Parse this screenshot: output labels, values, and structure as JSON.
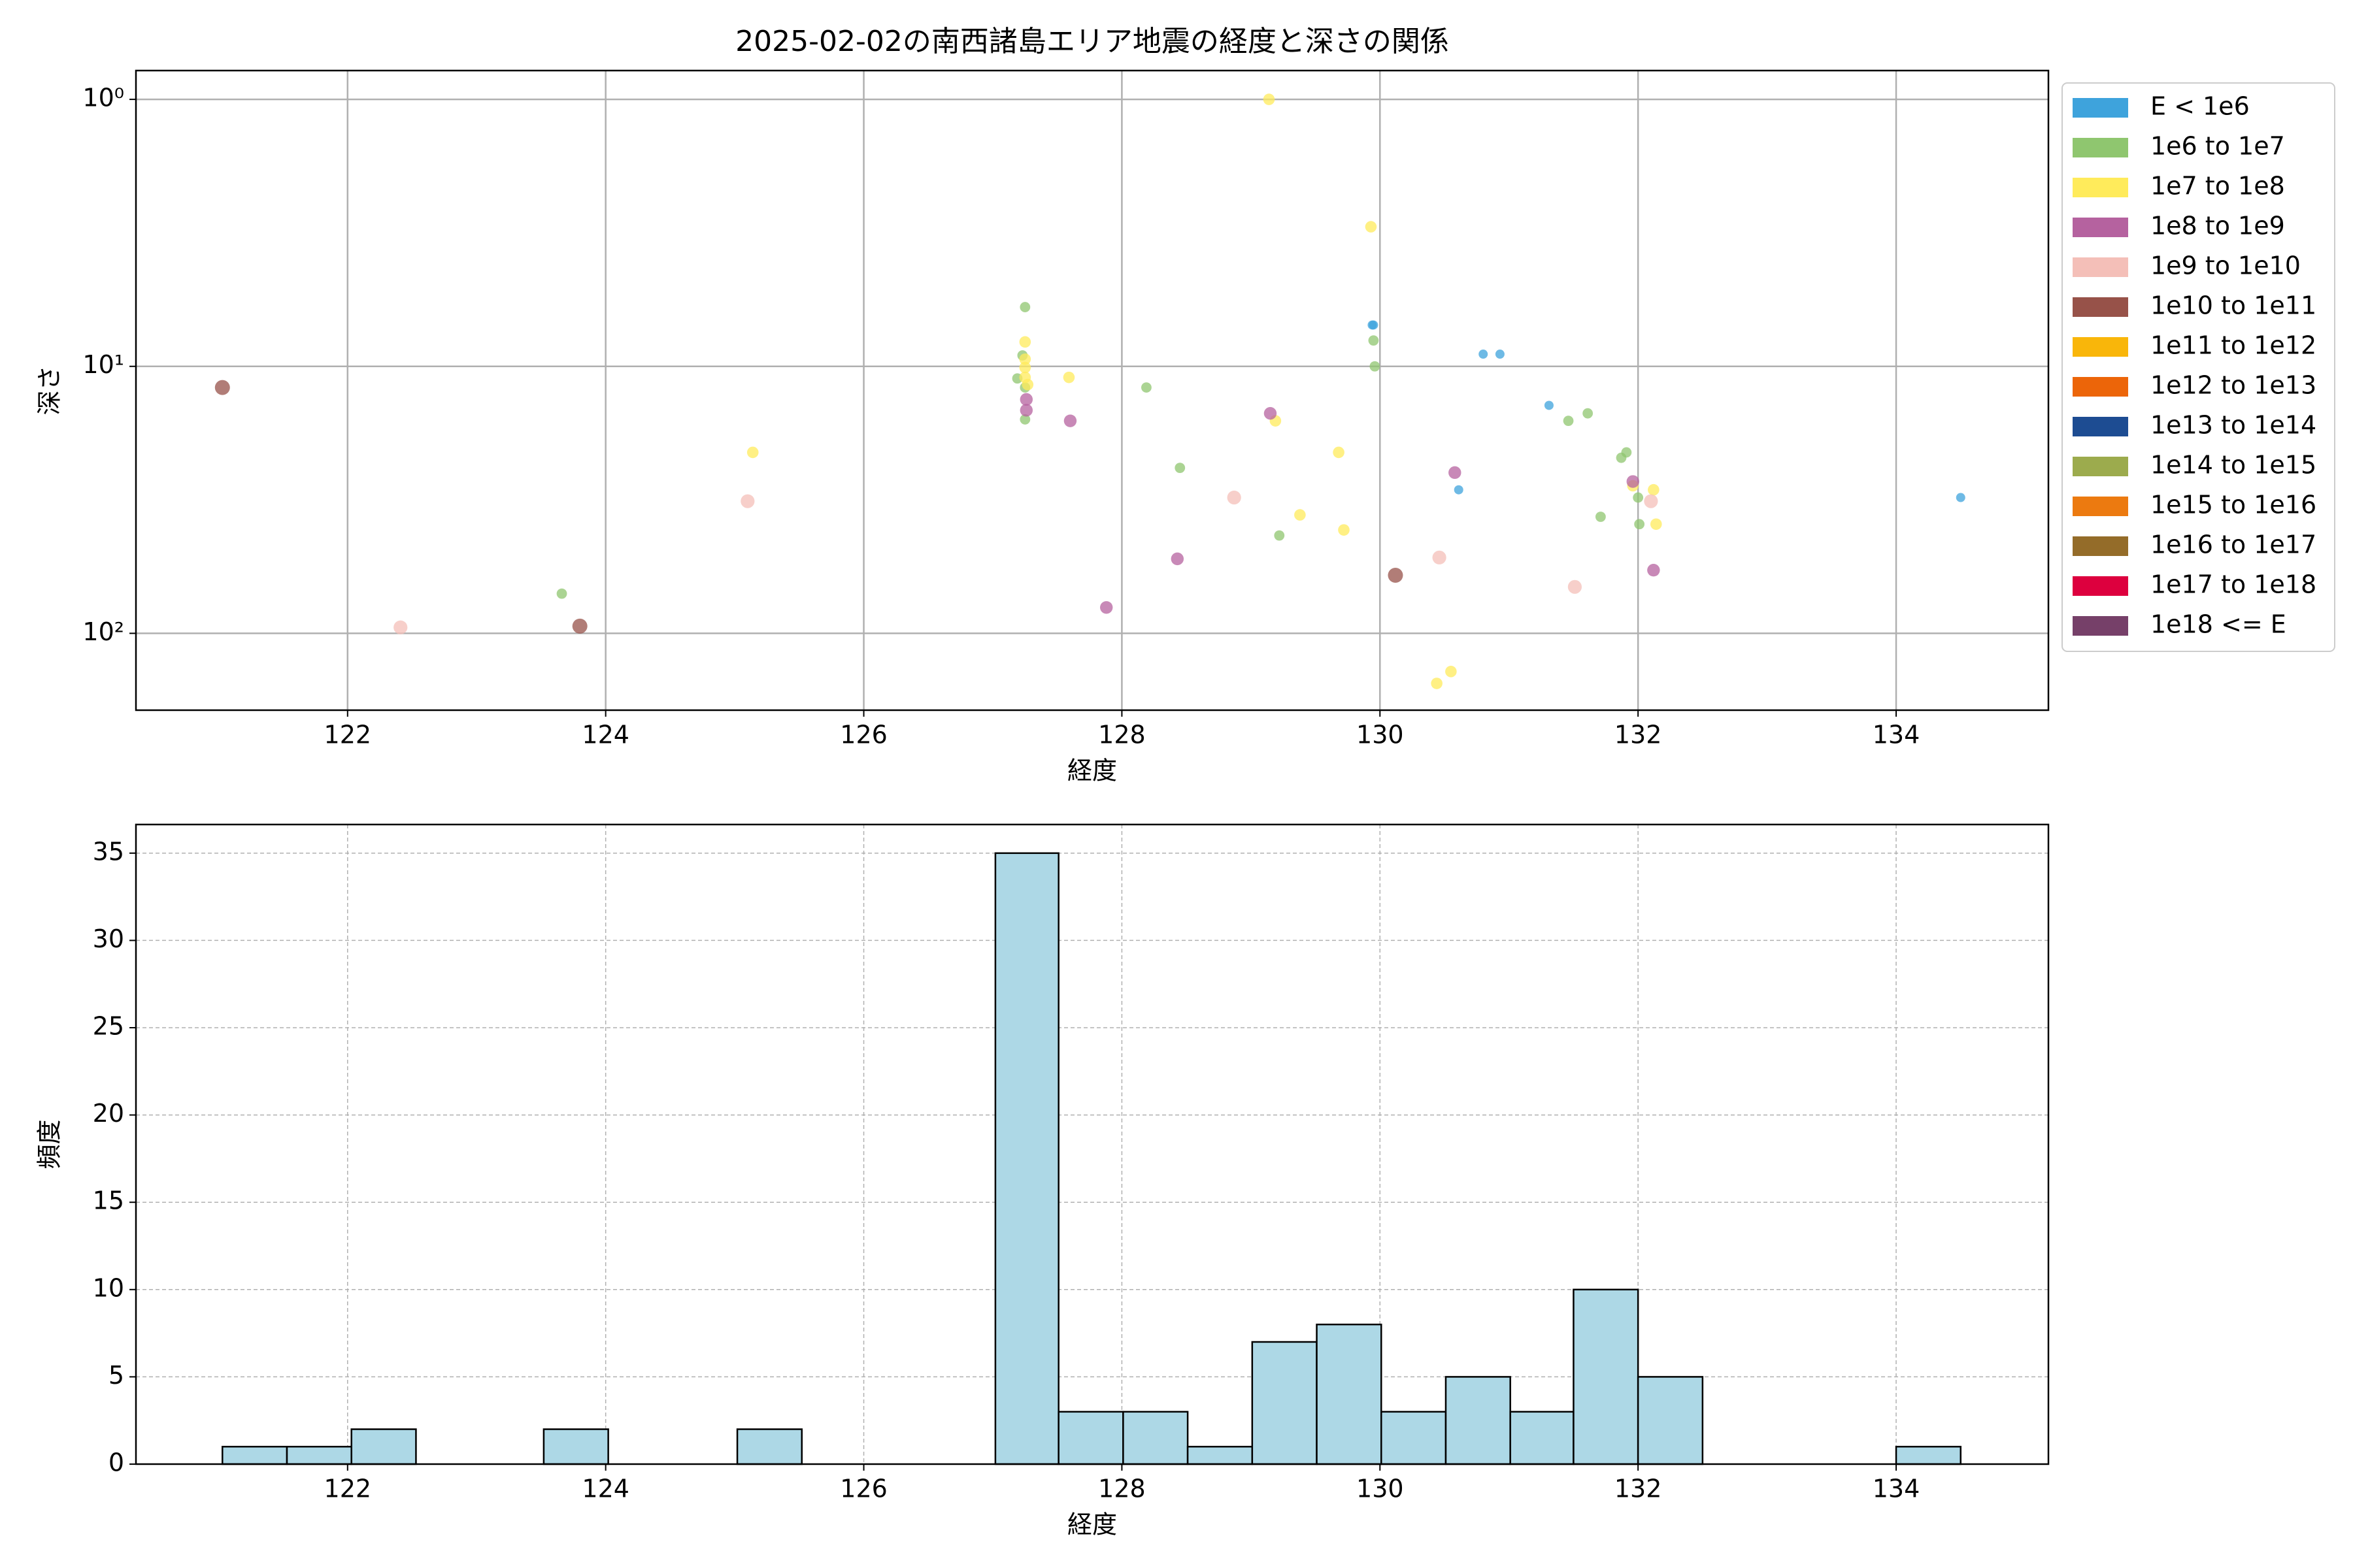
{
  "chart_data": [
    {
      "type": "scatter",
      "title": "2025-02-02の南西諸島エリア地震の経度と深さの関係",
      "xlabel": "経度",
      "ylabel": "深さ",
      "xlim": [
        120.36,
        135.18
      ],
      "xticks": [
        122,
        124,
        126,
        128,
        130,
        132,
        134
      ],
      "ylim": [
        0.78,
        194
      ],
      "log_y": true,
      "invert_y": true,
      "yticks": [
        {
          "value": 1,
          "label": "10⁰"
        },
        {
          "value": 10,
          "label": "10¹"
        },
        {
          "value": 100,
          "label": "10²"
        }
      ],
      "grid": true,
      "legend": "outside right",
      "series": [
        {
          "name": "E < 1e6",
          "color": "#3ea3dc",
          "x": [
            129.95,
            129.94,
            130.8,
            130.93,
            131.31,
            130.61,
            134.5
          ],
          "values": [
            7.0,
            7.0,
            9.0,
            9.0,
            14,
            29,
            31
          ]
        },
        {
          "name": "1e6 to 1e7",
          "color": "#8fc66f",
          "x": [
            127.25,
            127.23,
            127.19,
            127.25,
            127.25,
            128.19,
            129.95,
            129.96,
            128.45,
            129.22,
            123.66,
            131.46,
            131.61,
            131.87,
            131.91,
            132.0,
            131.71,
            132.01
          ],
          "values": [
            6.0,
            9.1,
            11.1,
            12,
            15.8,
            12,
            8.0,
            10.0,
            24,
            43,
            71,
            16,
            15,
            22,
            21,
            31,
            36.6,
            39
          ]
        },
        {
          "name": "1e7 to 1e8",
          "color": "#ffeb5b",
          "x": [
            129.14,
            129.93,
            127.25,
            127.25,
            127.25,
            127.25,
            127.27,
            127.59,
            125.14,
            129.19,
            129.68,
            129.72,
            129.38,
            131.96,
            132.12,
            132.14,
            130.44,
            130.55
          ],
          "values": [
            1.0,
            3.0,
            8.1,
            9.4,
            10.1,
            11,
            11.7,
            11,
            21,
            16,
            21,
            41,
            36,
            28,
            29,
            39,
            154,
            139
          ]
        },
        {
          "name": "1e8 to 1e9",
          "color": "#b5629f",
          "x": [
            127.26,
            127.26,
            127.6,
            129.15,
            130.58,
            131.96,
            128.43,
            127.88,
            132.12
          ],
          "values": [
            13.3,
            14.6,
            16,
            15,
            25,
            27,
            52.6,
            80,
            58
          ]
        },
        {
          "name": "1e9 to 1e10",
          "color": "#f4bfb8",
          "x": [
            122.41,
            125.1,
            128.87,
            130.46,
            131.51,
            132.1
          ],
          "values": [
            95,
            32,
            31,
            52,
            67,
            32
          ]
        },
        {
          "name": "1e10 to 1e11",
          "color": "#975249",
          "x": [
            121.03,
            123.8,
            130.12
          ],
          "values": [
            12,
            94,
            60.6
          ]
        },
        {
          "name": "1e11 to 1e12",
          "color": "#f9b60a",
          "x": [],
          "values": []
        },
        {
          "name": "1e12 to 1e13",
          "color": "#ec6509",
          "x": [],
          "values": []
        },
        {
          "name": "1e13 to 1e14",
          "color": "#1d4c92",
          "x": [],
          "values": []
        },
        {
          "name": "1e14 to 1e15",
          "color": "#9cab4d",
          "x": [],
          "values": []
        },
        {
          "name": "1e15 to 1e16",
          "color": "#ec7a10",
          "x": [],
          "values": []
        },
        {
          "name": "1e16 to 1e17",
          "color": "#946c29",
          "x": [],
          "values": []
        },
        {
          "name": "1e17 to 1e18",
          "color": "#dd003e",
          "x": [],
          "values": []
        },
        {
          "name": "1e18 <= E",
          "color": "#764069",
          "x": [],
          "values": []
        }
      ]
    },
    {
      "type": "histogram",
      "xlabel": "経度",
      "ylabel": "頻度",
      "xlim": [
        120.36,
        135.18
      ],
      "xticks": [
        122,
        124,
        126,
        128,
        130,
        132,
        134
      ],
      "ylim": [
        0,
        36.64
      ],
      "yticks": [
        0,
        5,
        10,
        15,
        20,
        25,
        30,
        35
      ],
      "grid": true,
      "color": "#add8e6",
      "bins": [
        121.03,
        121.53,
        122.03,
        122.53,
        123.03,
        123.52,
        124.02,
        124.52,
        125.02,
        125.52,
        126.02,
        126.52,
        127.02,
        127.51,
        128.01,
        128.51,
        129.01,
        129.51,
        130.01,
        130.51,
        131.01,
        131.5,
        132.0,
        132.5,
        133.0,
        133.5,
        134.0,
        134.5
      ],
      "values": [
        1,
        1,
        2,
        0,
        0,
        2,
        0,
        0,
        2,
        0,
        0,
        0,
        35,
        3,
        3,
        1,
        7,
        8,
        3,
        5,
        3,
        10,
        5,
        0,
        0,
        0,
        1
      ]
    }
  ]
}
